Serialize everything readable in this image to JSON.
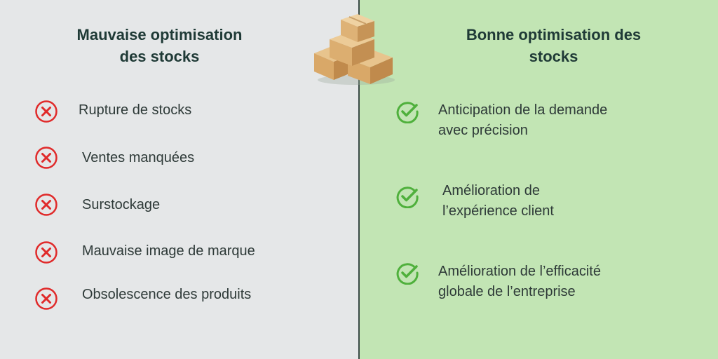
{
  "bad": {
    "title": "Mauvaise optimisation\ndes stocks",
    "items": [
      {
        "label": "Rupture de stocks",
        "icon": "red-x-circle-icon"
      },
      {
        "label": "Ventes manquées",
        "icon": "red-x-circle-icon"
      },
      {
        "label": "Surstockage",
        "icon": "red-x-circle-icon"
      },
      {
        "label": "Mauvaise image de marque",
        "icon": "red-x-circle-icon"
      },
      {
        "label": "Obsolescence des produits",
        "icon": "red-x-circle-icon"
      }
    ]
  },
  "good": {
    "title": "Bonne optimisation des\nstocks",
    "items": [
      {
        "label": "Anticipation de la demande\navec précision",
        "icon": "green-check-circle-icon"
      },
      {
        "label": "Amélioration de\nl’expérience client",
        "icon": "green-check-circle-icon"
      },
      {
        "label": "Amélioration de l’efficacité\nglobale de l’entreprise",
        "icon": "green-check-circle-icon"
      }
    ]
  },
  "colors": {
    "left_bg": "#e5e7e8",
    "right_bg": "#c2e5b4",
    "x_icon": "#e02a2a",
    "check_icon": "#4fb03c",
    "heading": "#1f3a36"
  },
  "illustration": "cardboard-boxes-stack"
}
